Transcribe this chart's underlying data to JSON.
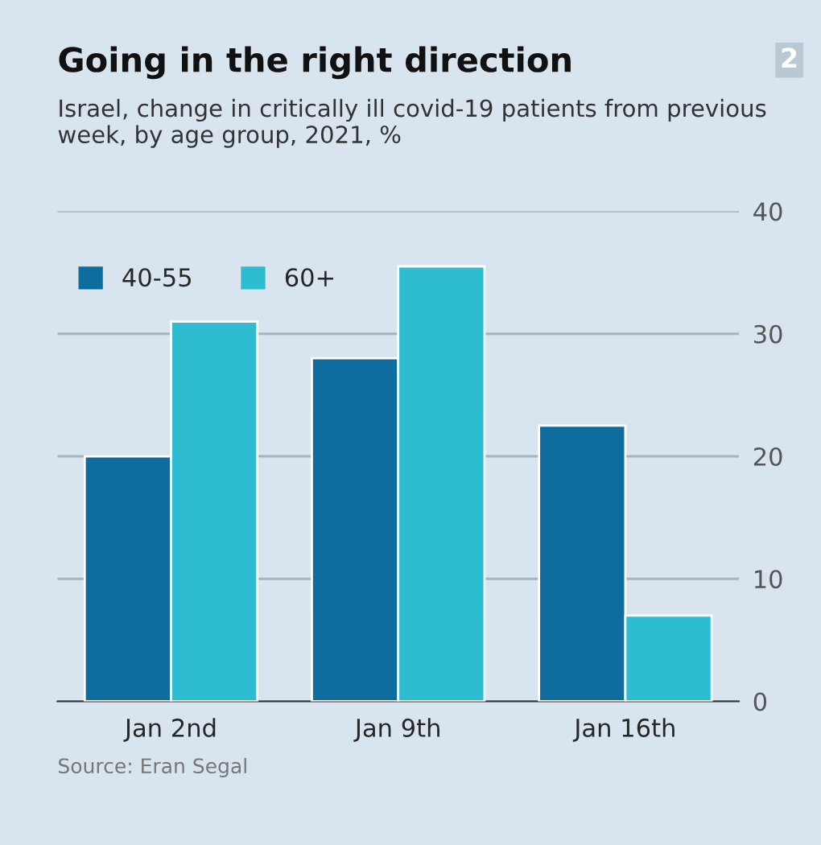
{
  "chart_data": {
    "type": "bar",
    "title": "Going in the right direction",
    "subtitle": "Israel, change in critically ill covid-19 patients from previous week, by age group, 2021, %",
    "categories": [
      "Jan 2nd",
      "Jan 9th",
      "Jan 16th"
    ],
    "series": [
      {
        "name": "40-55",
        "color": "#0f6c9e",
        "values": [
          20,
          28,
          22.5
        ]
      },
      {
        "name": "60+",
        "color": "#2ebcd0",
        "values": [
          31,
          35.5,
          7
        ]
      }
    ],
    "ylim": [
      0,
      40
    ],
    "yticks": [
      0,
      10,
      20,
      30,
      40
    ],
    "grid": "y",
    "legend": "top left",
    "annotations": [
      "Source: Eran Segal",
      "2"
    ]
  }
}
